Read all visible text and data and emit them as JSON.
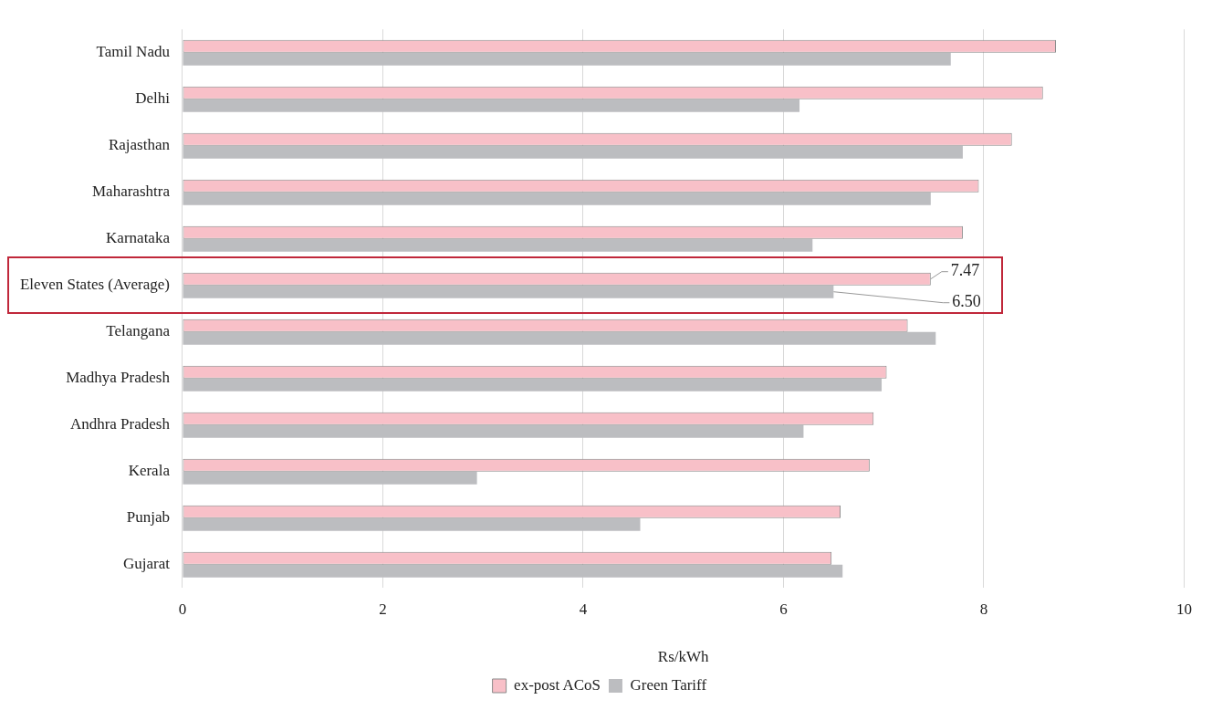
{
  "chart_data": {
    "type": "bar",
    "orientation": "horizontal",
    "xlabel": "Rs/kWh",
    "categories": [
      "Tamil Nadu",
      "Delhi",
      "Rajasthan",
      "Maharashtra",
      "Karnataka",
      "Eleven States (Average)",
      "Telangana",
      "Madhya Pradesh",
      "Andhra Pradesh",
      "Kerala",
      "Punjab",
      "Gujarat"
    ],
    "series": [
      {
        "name": "ex-post ACoS",
        "color": "#f8c0c8",
        "values": [
          8.72,
          8.59,
          8.28,
          7.95,
          7.79,
          7.47,
          7.24,
          7.03,
          6.9,
          6.86,
          6.57,
          6.48
        ],
        "value_labels": [
          null,
          null,
          null,
          null,
          null,
          "7.47",
          null,
          null,
          null,
          null,
          null,
          null
        ]
      },
      {
        "name": "Green Tariff",
        "color": "#bcbdc0",
        "values": [
          7.67,
          6.16,
          7.79,
          7.47,
          6.29,
          6.5,
          7.52,
          6.98,
          6.2,
          2.94,
          4.57,
          6.59
        ],
        "value_labels": [
          null,
          null,
          null,
          null,
          null,
          "6.50",
          null,
          null,
          null,
          null,
          null,
          null
        ]
      }
    ],
    "xlim": [
      0,
      10
    ],
    "xticks": [
      0,
      2,
      4,
      6,
      8,
      10
    ],
    "grid": "x",
    "legend": "bottom"
  }
}
